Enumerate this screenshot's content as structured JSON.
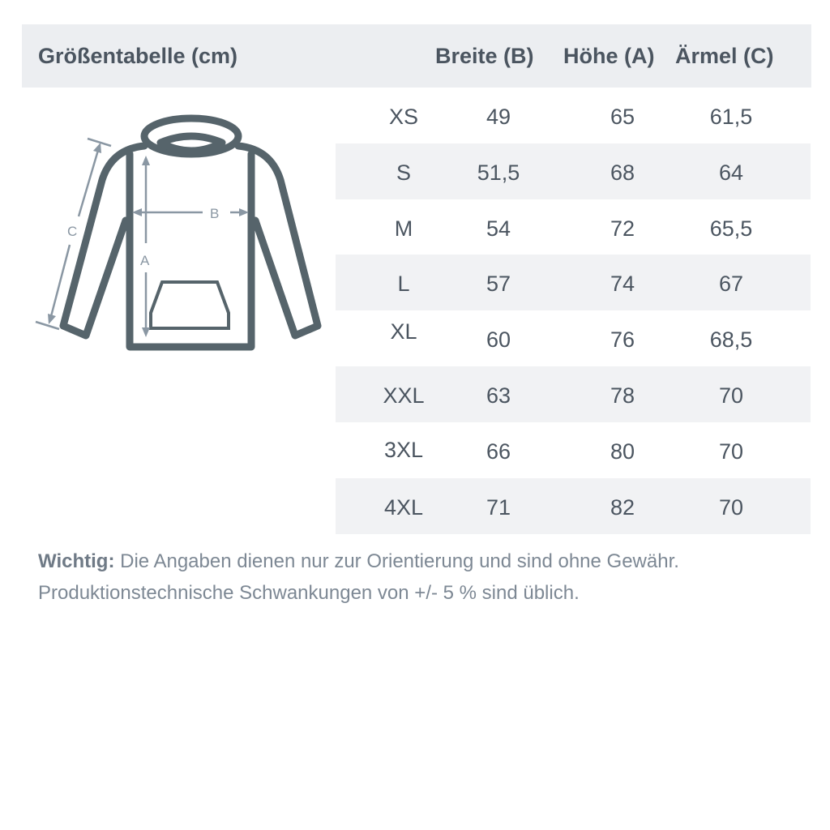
{
  "header": {
    "title": "Größentabelle (cm)",
    "col_b": "Breite (B)",
    "col_a": "Höhe (A)",
    "col_c": "Ärmel (C)"
  },
  "diagram": {
    "label_a": "A",
    "label_b": "B",
    "label_c": "C",
    "icon": "hoodie-icon"
  },
  "rows": [
    {
      "size": "XS",
      "b": "49",
      "a": "65",
      "c": "61,5"
    },
    {
      "size": "S",
      "b": "51,5",
      "a": "68",
      "c": "64"
    },
    {
      "size": "M",
      "b": "54",
      "a": "72",
      "c": "65,5"
    },
    {
      "size": "L",
      "b": "57",
      "a": "74",
      "c": "67"
    },
    {
      "size": "XL",
      "b": "60",
      "a": "76",
      "c": "68,5"
    },
    {
      "size": "XXL",
      "b": "63",
      "a": "78",
      "c": "70"
    },
    {
      "size": "3XL",
      "b": "66",
      "a": "80",
      "c": "70"
    },
    {
      "size": "4XL",
      "b": "71",
      "a": "82",
      "c": "70"
    }
  ],
  "note": {
    "bold": "Wichtig:",
    "line1": " Die Angaben dienen nur zur Orientierung und sind ohne Gewähr.",
    "line2": "Produktionstechnische Schwankungen von +/- 5 % sind üblich."
  },
  "colors": {
    "outline": "#56646b",
    "arrows": "#8a97a3",
    "header_bg": "#eceef1"
  }
}
